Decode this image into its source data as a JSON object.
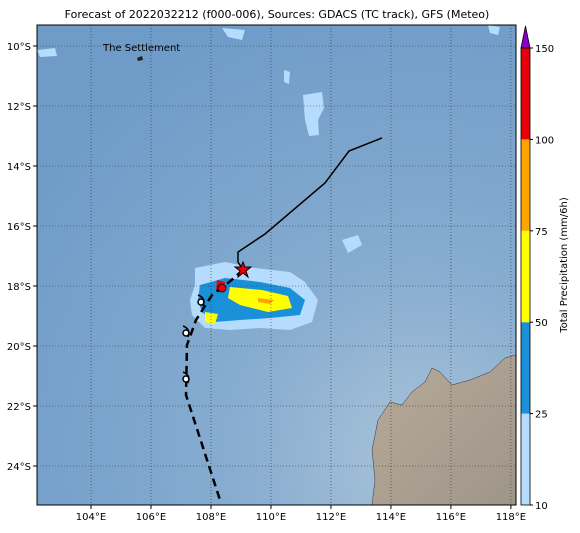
{
  "map": {
    "title": "Forecast of 2022032212 (f000-006), Sources: GDACS (TC track), GFS (Meteo)",
    "place_label": "The Settlement",
    "xlim": [
      102.2,
      118.17
    ],
    "ylim": [
      -25.3,
      -9.3
    ],
    "xticks": [
      {
        "value": 104,
        "label": "104°E"
      },
      {
        "value": 106,
        "label": "106°E"
      },
      {
        "value": 108,
        "label": "108°E"
      },
      {
        "value": 110,
        "label": "110°E"
      },
      {
        "value": 112,
        "label": "112°E"
      },
      {
        "value": 114,
        "label": "114°E"
      },
      {
        "value": 116,
        "label": "116°E"
      },
      {
        "value": 118,
        "label": "118°E"
      }
    ],
    "yticks": [
      {
        "value": -10,
        "label": "10°S"
      },
      {
        "value": -12,
        "label": "12°S"
      },
      {
        "value": -14,
        "label": "14°S"
      },
      {
        "value": -16,
        "label": "16°S"
      },
      {
        "value": -18,
        "label": "18°S"
      },
      {
        "value": -20,
        "label": "20°S"
      },
      {
        "value": -22,
        "label": "22°S"
      },
      {
        "value": -24,
        "label": "24°S"
      }
    ],
    "grid": true,
    "colorbar": {
      "label": "Total Precipitation (mm/6h)",
      "ticks": [
        10,
        25,
        50,
        75,
        100,
        150
      ],
      "colors": [
        "#b5dcfd",
        "#1a90d8",
        "#ffff00",
        "#ffa500",
        "#e8000b"
      ],
      "extend_color": "#8a00c8"
    }
  }
}
